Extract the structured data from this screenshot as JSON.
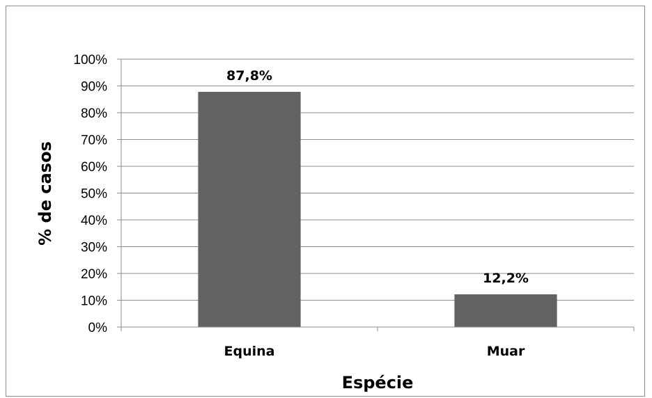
{
  "chart_data": {
    "type": "bar",
    "categories": [
      "Equina",
      "Muar"
    ],
    "values": [
      87.8,
      12.2
    ],
    "data_labels": [
      "87,8%",
      "12,2%"
    ],
    "title": "",
    "xlabel": "Espécie",
    "ylabel": "% de casos",
    "ylim": [
      0,
      100
    ],
    "yticks": [
      0,
      10,
      20,
      30,
      40,
      50,
      60,
      70,
      80,
      90,
      100
    ],
    "ytick_labels": [
      "0%",
      "10%",
      "20%",
      "30%",
      "40%",
      "50%",
      "60%",
      "70%",
      "80%",
      "90%",
      "100%"
    ],
    "grid": true,
    "legend": "none",
    "colors": {
      "bar": "#626262",
      "grid": "#8c8c8c",
      "axis": "#8c8c8c",
      "frame": "#8c8c8c"
    }
  }
}
